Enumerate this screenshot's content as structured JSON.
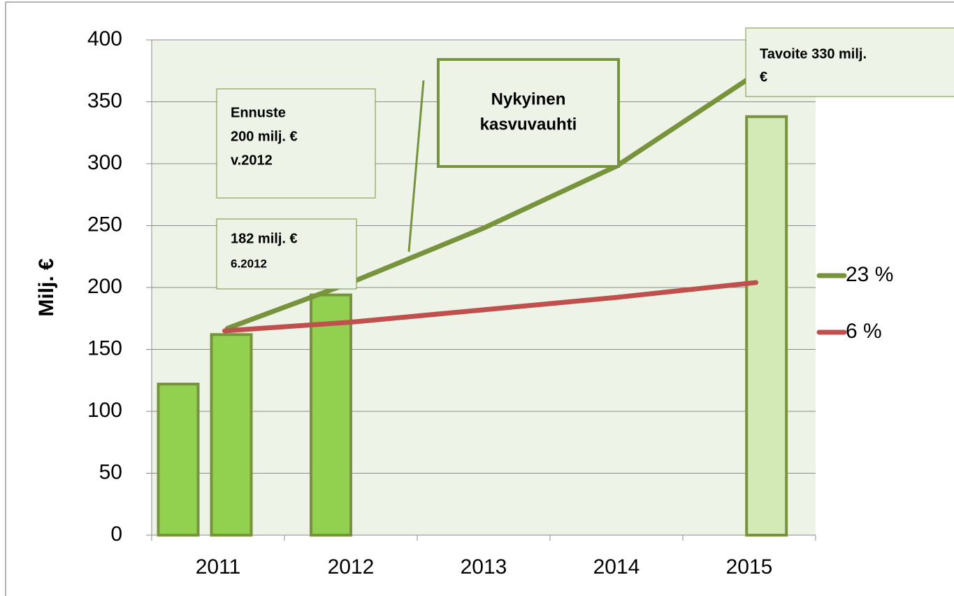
{
  "chart_data": {
    "type": "combo",
    "y_axis_label": "Milj. €",
    "categories": [
      "2011",
      "2012",
      "2013",
      "2014",
      "2015"
    ],
    "xlim": [
      2010.5,
      2015.5
    ],
    "xticks": [
      2011,
      2012,
      2013,
      2014,
      2015
    ],
    "ylim": [
      0,
      400
    ],
    "yticks": [
      0,
      50,
      100,
      150,
      200,
      250,
      300,
      350,
      400
    ],
    "grid": true,
    "legend": "right",
    "series": [
      {
        "type": "bar",
        "x": [
          2010.7,
          2011.1,
          2011.85,
          2015.13
        ],
        "values": [
          122,
          162,
          194,
          338
        ],
        "colors": [
          "#92d050",
          "#92d050",
          "#92d050",
          "#d3e9b6"
        ],
        "edge_color": "#77933c"
      },
      {
        "type": "line",
        "name": "23 %",
        "color": "#77933c",
        "x": [
          2011.07,
          2012,
          2013,
          2014,
          2015.1
        ],
        "values": [
          167,
          204,
          248,
          298,
          376
        ]
      },
      {
        "type": "line",
        "name": "6 %",
        "color": "#c0504d",
        "x": [
          2011.05,
          2012,
          2013,
          2014,
          2015.05
        ],
        "values": [
          165,
          172,
          182,
          192,
          204
        ]
      }
    ],
    "annotations": [
      {
        "lines": [
          "Ennuste",
          "200 milj. €",
          " v.2012"
        ]
      },
      {
        "lines": [
          "182 milj. €",
          "6.2012"
        ]
      },
      {
        "lines": [
          "Nykyinen",
          "kasvuvauhti"
        ]
      },
      {
        "lines": [
          "Tavoite 330 milj.",
          "€"
        ]
      }
    ]
  }
}
